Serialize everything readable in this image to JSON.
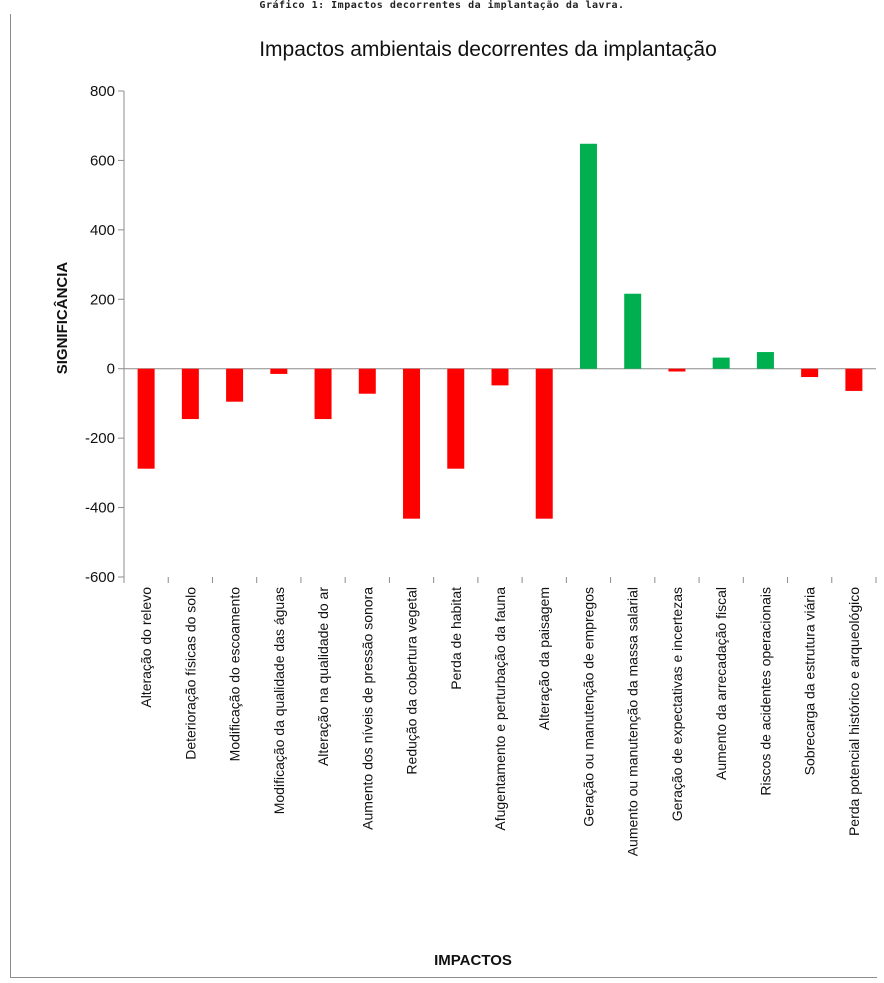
{
  "caption": "Gráfico 1: Impactos decorrentes da implantação da lavra.",
  "chart_data": {
    "type": "bar",
    "title": "Impactos ambientais decorrentes da implantação",
    "xlabel": "IMPACTOS",
    "ylabel": "SIGNIFICÂNCIA",
    "ylim": [
      -600,
      800
    ],
    "yticks": [
      800,
      600,
      400,
      200,
      0,
      -200,
      -400,
      -600
    ],
    "grid": false,
    "legend": "none",
    "colors": {
      "positive": "#00b050",
      "negative": "#ff0000"
    },
    "categories": [
      "Alteração do relevo",
      "Deterioração físicas do solo",
      "Modificação do escoamento",
      "Modificação da qualidade das águas",
      "Alteração na qualidade do ar",
      "Aumento dos níveis de pressão sonora",
      "Redução da cobertura vegetal",
      "Perda de habitat",
      "Afugentamento e perturbação da fauna",
      "Alteração da paisagem",
      "Geração ou manutenção de empregos",
      "Aumento ou manutenção da massa salarial",
      "Geração de expectativas e incertezas",
      "Aumento da arrecadação fiscal",
      "Riscos de acidentes operacionais",
      "Sobrecarga da estrutura viária",
      "Perda potencial histórico e arqueológico"
    ],
    "values": [
      -288,
      -145,
      -95,
      -15,
      -145,
      -72,
      -432,
      -288,
      -48,
      -432,
      648,
      216,
      -8,
      32,
      48,
      -24,
      -64
    ]
  }
}
